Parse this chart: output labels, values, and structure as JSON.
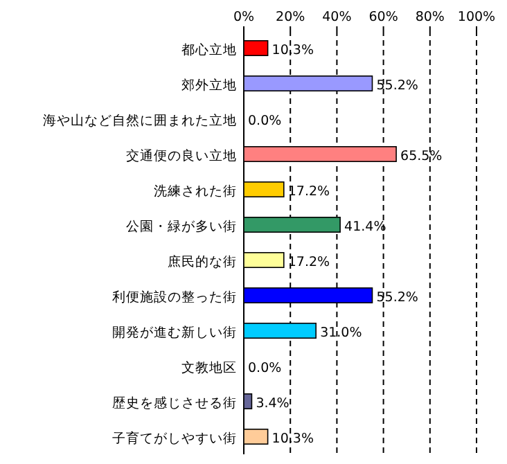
{
  "chart_data": {
    "type": "bar",
    "orientation": "horizontal",
    "categories": [
      "都心立地",
      "郊外立地",
      "海や山など自然に囲まれた立地",
      "交通便の良い立地",
      "洗練された街",
      "公園・緑が多い街",
      "庶民的な街",
      "利便施設の整った街",
      "開発が進む新しい街",
      "文教地区",
      "歴史を感じさせる街",
      "子育てがしやすい街"
    ],
    "values": [
      10.3,
      55.2,
      0.0,
      65.5,
      17.2,
      41.4,
      17.2,
      55.2,
      31.0,
      0.0,
      3.4,
      10.3
    ],
    "value_labels": [
      "10.3%",
      "55.2%",
      "0.0%",
      "65.5%",
      "17.2%",
      "41.4%",
      "17.2%",
      "55.2%",
      "31.0%",
      "0.0%",
      "3.4%",
      "10.3%"
    ],
    "colors": [
      "#ff0000",
      "#9999ff",
      "#999999",
      "#ff8080",
      "#ffcc00",
      "#339966",
      "#ffff99",
      "#0000ff",
      "#00ccff",
      "#999999",
      "#666699",
      "#ffcc99"
    ],
    "xlim": [
      0,
      100
    ],
    "xticks": [
      {
        "value": 0,
        "label": "0%"
      },
      {
        "value": 20,
        "label": "20%"
      },
      {
        "value": 40,
        "label": "40%"
      },
      {
        "value": 60,
        "label": "60%"
      },
      {
        "value": 80,
        "label": "80%"
      },
      {
        "value": 100,
        "label": "100%"
      }
    ],
    "grid": "x"
  }
}
